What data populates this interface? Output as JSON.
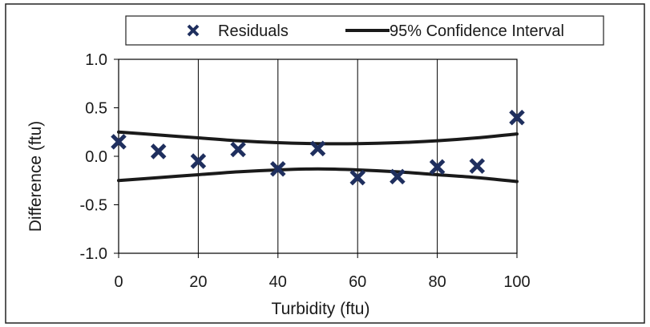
{
  "chart_data": {
    "type": "scatter",
    "title": "",
    "xlabel": "Turbidity (ftu)",
    "ylabel": "Difference (ftu)",
    "xlim": [
      0,
      100
    ],
    "ylim": [
      -1.0,
      1.0
    ],
    "x_ticks": [
      0,
      20,
      40,
      60,
      80,
      100
    ],
    "y_ticks": [
      1.0,
      0.5,
      0.0,
      -0.5,
      -1.0
    ],
    "x_tick_labels": [
      "0",
      "20",
      "40",
      "60",
      "80",
      "100"
    ],
    "y_tick_labels": [
      "1.0",
      "0.5",
      "0.0",
      "-0.5",
      "-1.0"
    ],
    "grid": "vertical",
    "legend_position": "top",
    "legend": [
      {
        "label": "Residuals",
        "marker": "x"
      },
      {
        "label": "95% Confidence Interval",
        "marker": "line"
      }
    ],
    "series": [
      {
        "name": "Residuals",
        "type": "scatter",
        "color": "#1f2f5e",
        "x": [
          0,
          10,
          20,
          30,
          40,
          50,
          60,
          70,
          80,
          90,
          100
        ],
        "y": [
          0.15,
          0.05,
          -0.05,
          0.07,
          -0.13,
          0.08,
          -0.22,
          -0.21,
          -0.11,
          -0.1,
          0.4
        ]
      },
      {
        "name": "95% Confidence Interval",
        "type": "line",
        "color": "#1a1a1a",
        "x": [
          0,
          10,
          20,
          30,
          40,
          50,
          60,
          70,
          80,
          90,
          100
        ],
        "upper": [
          0.25,
          0.22,
          0.19,
          0.16,
          0.14,
          0.13,
          0.13,
          0.14,
          0.16,
          0.19,
          0.23
        ],
        "lower": [
          -0.25,
          -0.22,
          -0.19,
          -0.16,
          -0.14,
          -0.13,
          -0.14,
          -0.16,
          -0.19,
          -0.22,
          -0.26
        ]
      }
    ]
  }
}
